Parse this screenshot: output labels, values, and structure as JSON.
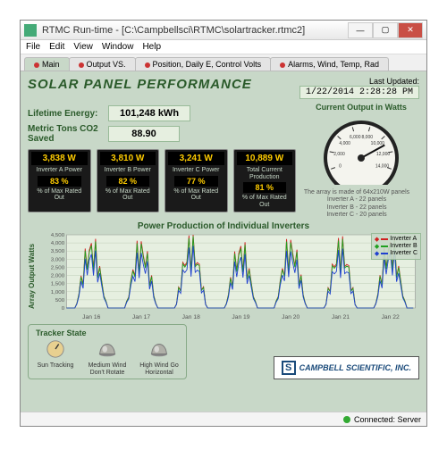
{
  "window": {
    "title": "RTMC Run-time - [C:\\Campbellsci\\RTMC\\solartracker.rtmc2]",
    "menu": [
      "File",
      "Edit",
      "View",
      "Window",
      "Help"
    ],
    "tabs": [
      "Main",
      "Output VS.",
      "Position, Daily E, Control Volts",
      "Alarms, Wind, Temp, Rad"
    ],
    "active_tab": 0,
    "status": "Connected: Server"
  },
  "header": {
    "title": "SOLAR PANEL PERFORMANCE",
    "last_updated_label": "Last Updated:",
    "last_updated": "1/22/2014 2:28:28 PM"
  },
  "metrics": {
    "lifetime_label": "Lifetime Energy:",
    "lifetime_value": "101,248 kWh",
    "co2_label": "Metric Tons CO2 Saved",
    "co2_value": "88.90"
  },
  "gauge": {
    "label": "Current Output in Watts",
    "min": 0,
    "max": 14000,
    "value": 10889,
    "ticks": [
      0,
      2000,
      4000,
      6000,
      8000,
      10000,
      12000,
      14000
    ],
    "face": "#f4f4ee",
    "needle": "#111",
    "text": "#333"
  },
  "inverters": [
    {
      "power": "3,838 W",
      "name": "Inverter A Power",
      "pct": "83 %",
      "pctlab": "% of Max Rated Out"
    },
    {
      "power": "3,810 W",
      "name": "Inverter B Power",
      "pct": "82 %",
      "pctlab": "% of Max Rated Out"
    },
    {
      "power": "3,241 W",
      "name": "Inverter C Power",
      "pct": "77 %",
      "pctlab": "% of Max Rated Out"
    },
    {
      "power": "10,889 W",
      "name": "Total Current Production",
      "pct": "81 %",
      "pctlab": "% of Max Rated Out"
    }
  ],
  "array_info": "The array is made of 64x210W panels\nInverter A - 22 panels\nInverter B - 22 panels\nInverter C - 20 panels",
  "chart": {
    "title": "Power Production of Individual Inverters",
    "ylabel": "Array Output Watts",
    "ylim": [
      0,
      4500
    ],
    "ytick_step": 500,
    "xlabels": [
      "Jan 16",
      "Jan 17",
      "Jan 18",
      "Jan 19",
      "Jan 20",
      "Jan 21",
      "Jan 22"
    ],
    "days": 7,
    "series": [
      {
        "name": "Inverter A",
        "color": "#d02020",
        "peaks": [
          4100,
          4000,
          4200,
          3900,
          4100,
          4050,
          4150
        ]
      },
      {
        "name": "Inverter B",
        "color": "#20a020",
        "peaks": [
          3950,
          3850,
          4050,
          3750,
          3950,
          3900,
          4000
        ]
      },
      {
        "name": "Inverter C",
        "color": "#2040d0",
        "peaks": [
          3400,
          3300,
          3500,
          3200,
          3400,
          3350,
          3450
        ]
      }
    ],
    "bg": "#e6efe0",
    "grid": "#b8c8b0",
    "text": "#555"
  },
  "tracker": {
    "title": "Tracker State",
    "states": [
      {
        "label": "Sun Tracking",
        "type": "knob",
        "color": "#e8d090"
      },
      {
        "label": "Medium Wind Don't Rotate",
        "type": "dome",
        "color": "#b0b0a8"
      },
      {
        "label": "High Wind Go Horizontal",
        "type": "dome",
        "color": "#b0b0a8"
      }
    ]
  },
  "logo": {
    "text": "CAMPBELL SCIENTIFIC, INC.",
    "mark": "S"
  }
}
